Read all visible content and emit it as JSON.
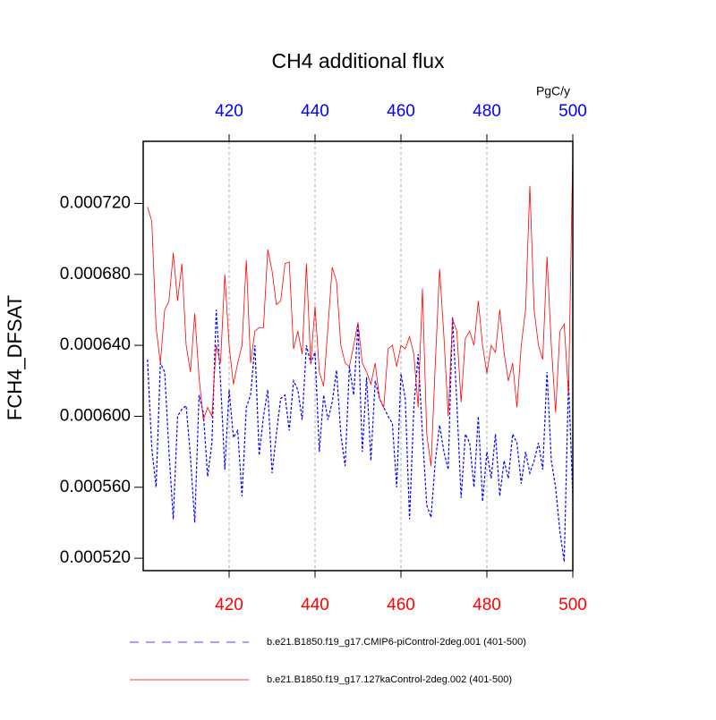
{
  "chart_data": {
    "type": "line",
    "title": "CH4 additional flux",
    "units": "PgC/y",
    "ylabel": "FCH4_DFSAT",
    "x": [
      401,
      402,
      403,
      404,
      405,
      406,
      407,
      408,
      409,
      410,
      411,
      412,
      413,
      414,
      415,
      416,
      417,
      418,
      419,
      420,
      421,
      422,
      423,
      424,
      425,
      426,
      427,
      428,
      429,
      430,
      431,
      432,
      433,
      434,
      435,
      436,
      437,
      438,
      439,
      440,
      441,
      442,
      443,
      444,
      445,
      446,
      447,
      448,
      449,
      450,
      451,
      452,
      453,
      454,
      455,
      456,
      457,
      458,
      459,
      460,
      461,
      462,
      463,
      464,
      465,
      466,
      467,
      468,
      469,
      470,
      471,
      472,
      473,
      474,
      475,
      476,
      477,
      478,
      479,
      480,
      481,
      482,
      483,
      484,
      485,
      486,
      487,
      488,
      489,
      490,
      491,
      492,
      493,
      494,
      495,
      496,
      497,
      498,
      499,
      500
    ],
    "series": [
      {
        "name": "b.e21.B1850.f19_g17.CMIP6-piControl-2deg.001 (401-500)",
        "color": "#0000ff",
        "dash": true,
        "values": [
          0.000632,
          0.000582,
          0.00056,
          0.00063,
          0.000625,
          0.00058,
          0.000542,
          0.0006,
          0.000604,
          0.000606,
          0.000577,
          0.00054,
          0.000612,
          0.000602,
          0.000566,
          0.000585,
          0.00066,
          0.00062,
          0.00057,
          0.000615,
          0.000588,
          0.000592,
          0.000555,
          0.000605,
          0.000612,
          0.00064,
          0.000578,
          0.0006,
          0.000615,
          0.000568,
          0.00059,
          0.00061,
          0.000612,
          0.000592,
          0.00062,
          0.000615,
          0.000598,
          0.00064,
          0.00063,
          0.000636,
          0.00058,
          0.000612,
          0.000598,
          0.000608,
          0.000626,
          0.00059,
          0.000572,
          0.000628,
          0.000612,
          0.000652,
          0.00058,
          0.000622,
          0.000575,
          0.00062,
          0.00061,
          0.000605,
          0.0006,
          0.000596,
          0.00056,
          0.000624,
          0.00061,
          0.000542,
          0.000605,
          0.000635,
          0.00059,
          0.00055,
          0.000543,
          0.000575,
          0.000595,
          0.00058,
          0.00057,
          0.000656,
          0.000608,
          0.000554,
          0.00059,
          0.000585,
          0.00056,
          0.0006,
          0.000552,
          0.00058,
          0.000565,
          0.00059,
          0.000555,
          0.000575,
          0.000565,
          0.00059,
          0.000585,
          0.000562,
          0.00058,
          0.000568,
          0.000575,
          0.000585,
          0.00057,
          0.000625,
          0.000575,
          0.00056,
          0.000535,
          0.000518,
          0.00062,
          0.000555
        ]
      },
      {
        "name": "b.e21.B1850.f19_g17.127kaControl-2deg.002 (401-500)",
        "color": "#ff0000",
        "dash": false,
        "values": [
          0.000718,
          0.00071,
          0.00065,
          0.00063,
          0.00066,
          0.000665,
          0.000692,
          0.000665,
          0.000686,
          0.00064,
          0.000625,
          0.000658,
          0.000622,
          0.000598,
          0.000605,
          0.0006,
          0.00064,
          0.00063,
          0.00068,
          0.00064,
          0.000618,
          0.00063,
          0.00064,
          0.000688,
          0.00063,
          0.000648,
          0.00065,
          0.00065,
          0.000694,
          0.000682,
          0.000663,
          0.000665,
          0.000686,
          0.000687,
          0.000638,
          0.000648,
          0.000635,
          0.000686,
          0.00063,
          0.000662,
          0.000625,
          0.000617,
          0.00065,
          0.000684,
          0.000676,
          0.00064,
          0.00063,
          0.000628,
          0.00064,
          0.000653,
          0.00063,
          0.000625,
          0.000618,
          0.00063,
          0.00061,
          0.000605,
          0.000638,
          0.00064,
          0.000628,
          0.00064,
          0.000638,
          0.000645,
          0.000635,
          0.000605,
          0.000672,
          0.00059,
          0.000572,
          0.00063,
          0.000683,
          0.000645,
          0.0006,
          0.000655,
          0.000648,
          0.000608,
          0.000644,
          0.000648,
          0.00064,
          0.000665,
          0.00064,
          0.000624,
          0.00064,
          0.000636,
          0.00066,
          0.000636,
          0.00062,
          0.00063,
          0.000605,
          0.00064,
          0.00066,
          0.00073,
          0.00066,
          0.00064,
          0.000632,
          0.00069,
          0.00064,
          0.000602,
          0.000648,
          0.000652,
          0.000612,
          0.00075
        ]
      }
    ],
    "xlim": [
      400,
      500
    ],
    "xticks": [
      420,
      440,
      460,
      480,
      500
    ],
    "xtick_color": "#ff0000",
    "x2tick_color": "#0000ff",
    "ylim": [
      0.000513,
      0.000755
    ],
    "yticks": [
      {
        "value": 0.00052,
        "label": "0.000520"
      },
      {
        "value": 0.00056,
        "label": "0.000560"
      },
      {
        "value": 0.0006,
        "label": "0.000600"
      },
      {
        "value": 0.00064,
        "label": "0.000640"
      },
      {
        "value": 0.00068,
        "label": "0.000680"
      },
      {
        "value": 0.00072,
        "label": "0.000720"
      }
    ],
    "grid": true
  }
}
